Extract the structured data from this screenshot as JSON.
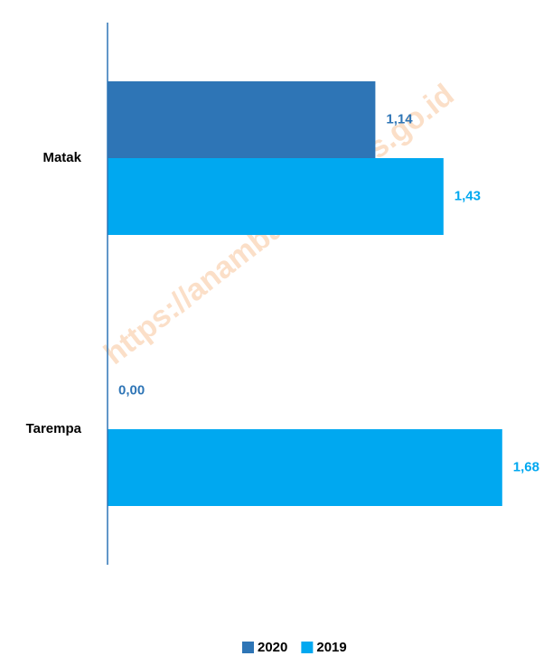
{
  "chart_data": {
    "type": "bar",
    "orientation": "horizontal",
    "categories": [
      "Matak",
      "Tarempa"
    ],
    "series": [
      {
        "name": "2020",
        "color": "#2e75b6",
        "values": [
          1.14,
          0
        ],
        "value_labels": [
          "1,14",
          "0,00"
        ]
      },
      {
        "name": "2019",
        "color": "#00a8f0",
        "values": [
          1.43,
          1.68
        ],
        "value_labels": [
          "1,43",
          "1,68"
        ]
      }
    ],
    "xlim": [
      0,
      1.8
    ],
    "legend": "bottom",
    "watermark": "https://anambaskab.bps.go.id"
  }
}
